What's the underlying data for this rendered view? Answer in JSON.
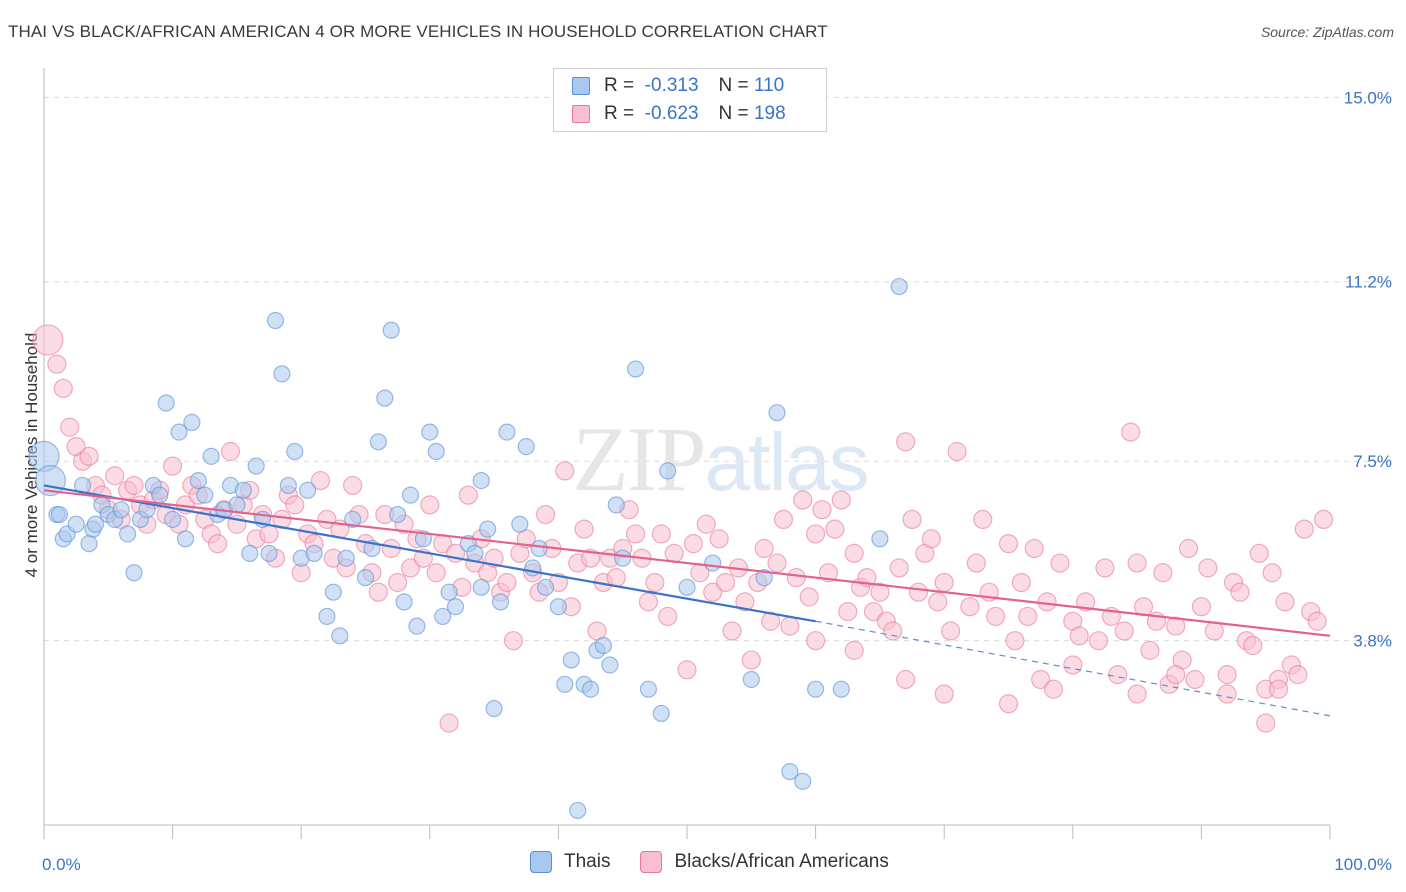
{
  "header": {
    "title": "THAI VS BLACK/AFRICAN AMERICAN 4 OR MORE VEHICLES IN HOUSEHOLD CORRELATION CHART",
    "source": "Source: ZipAtlas.com"
  },
  "watermark": "ZIPatlas",
  "legend": {
    "rows": [
      {
        "r_label": "R =",
        "r_value": "-0.313",
        "n_label": "N =",
        "n_value": "110",
        "color": "#a9c8ee",
        "stroke": "#5b8fd6"
      },
      {
        "r_label": "R =",
        "r_value": "-0.623",
        "n_label": "N =",
        "n_value": "198",
        "color": "#f7bfd0",
        "stroke": "#e8799b"
      }
    ]
  },
  "bottom_legend": [
    {
      "label": "Thais",
      "color": "#a9c8ee",
      "stroke": "#5b8fd6"
    },
    {
      "label": "Blacks/African Americans",
      "color": "#f7bfd0",
      "stroke": "#e8799b"
    }
  ],
  "chart_data": {
    "type": "scatter",
    "title": "THAI VS BLACK/AFRICAN AMERICAN 4 OR MORE VEHICLES IN HOUSEHOLD CORRELATION CHART",
    "xlabel": "",
    "ylabel": "4 or more Vehicles in Household",
    "xlim": [
      0,
      100
    ],
    "ylim": [
      0,
      15.4
    ],
    "x_tick_labels": [
      {
        "value": 0,
        "label": "0.0%"
      },
      {
        "value": 100,
        "label": "100.0%"
      }
    ],
    "y_ticks": [
      {
        "value": 3.8,
        "label": "3.8%"
      },
      {
        "value": 7.5,
        "label": "7.5%"
      },
      {
        "value": 11.2,
        "label": "11.2%"
      },
      {
        "value": 15.0,
        "label": "15.0%"
      }
    ],
    "grid": true,
    "legend_position": "top-center",
    "series": [
      {
        "name": "Thais",
        "color": "#5b8fd6",
        "fill": "#a9c8ee",
        "trend": {
          "x_start": 0,
          "y_start": 7.0,
          "x_end": 60,
          "y_end": 4.2,
          "dashed_to_x": 100,
          "dashed_to_y": 2.25
        },
        "points": [
          [
            0,
            7.6
          ],
          [
            0.5,
            7.1
          ],
          [
            1,
            6.4
          ],
          [
            1.2,
            6.4
          ],
          [
            1.5,
            5.9
          ],
          [
            1.8,
            6.0
          ],
          [
            2.5,
            6.2
          ],
          [
            3,
            7.0
          ],
          [
            3.5,
            5.8
          ],
          [
            3.8,
            6.1
          ],
          [
            4,
            6.2
          ],
          [
            4.5,
            6.6
          ],
          [
            5,
            6.4
          ],
          [
            5.5,
            6.3
          ],
          [
            6,
            6.5
          ],
          [
            6.5,
            6.0
          ],
          [
            7,
            5.2
          ],
          [
            7.5,
            6.3
          ],
          [
            8,
            6.5
          ],
          [
            8.5,
            7.0
          ],
          [
            9,
            6.8
          ],
          [
            9.5,
            8.7
          ],
          [
            10,
            6.3
          ],
          [
            10.5,
            8.1
          ],
          [
            11,
            5.9
          ],
          [
            11.5,
            8.3
          ],
          [
            12,
            7.1
          ],
          [
            12.5,
            6.8
          ],
          [
            13,
            7.6
          ],
          [
            13.5,
            6.4
          ],
          [
            14,
            6.5
          ],
          [
            14.5,
            7.0
          ],
          [
            15,
            6.6
          ],
          [
            15.5,
            6.9
          ],
          [
            16,
            5.6
          ],
          [
            16.5,
            7.4
          ],
          [
            17,
            6.3
          ],
          [
            17.5,
            5.6
          ],
          [
            18,
            10.4
          ],
          [
            18.5,
            9.3
          ],
          [
            19,
            7.0
          ],
          [
            19.5,
            7.7
          ],
          [
            20,
            5.5
          ],
          [
            20.5,
            6.9
          ],
          [
            21,
            5.6
          ],
          [
            22,
            4.3
          ],
          [
            22.5,
            4.8
          ],
          [
            23,
            3.9
          ],
          [
            23.5,
            5.5
          ],
          [
            24,
            6.3
          ],
          [
            25,
            5.1
          ],
          [
            25.5,
            5.7
          ],
          [
            26,
            7.9
          ],
          [
            26.5,
            8.8
          ],
          [
            27,
            10.2
          ],
          [
            27.5,
            6.4
          ],
          [
            28,
            4.6
          ],
          [
            28.5,
            6.8
          ],
          [
            29,
            4.1
          ],
          [
            29.5,
            5.9
          ],
          [
            30,
            8.1
          ],
          [
            30.5,
            7.7
          ],
          [
            31,
            4.3
          ],
          [
            31.5,
            4.8
          ],
          [
            32,
            4.5
          ],
          [
            33,
            5.8
          ],
          [
            33.5,
            5.6
          ],
          [
            34,
            7.1
          ],
          [
            34.5,
            6.1
          ],
          [
            35,
            2.4
          ],
          [
            35.5,
            4.6
          ],
          [
            36,
            8.1
          ],
          [
            37,
            6.2
          ],
          [
            37.5,
            7.8
          ],
          [
            38,
            5.3
          ],
          [
            38.5,
            5.7
          ],
          [
            39,
            4.9
          ],
          [
            40,
            4.5
          ],
          [
            40.5,
            2.9
          ],
          [
            41,
            3.4
          ],
          [
            41.5,
            0.3
          ],
          [
            42,
            2.9
          ],
          [
            42.5,
            2.8
          ],
          [
            43,
            3.6
          ],
          [
            43.5,
            3.7
          ],
          [
            44,
            3.3
          ],
          [
            44.5,
            6.6
          ],
          [
            45,
            5.5
          ],
          [
            46,
            9.4
          ],
          [
            47,
            2.8
          ],
          [
            48,
            2.3
          ],
          [
            48.5,
            7.3
          ],
          [
            50,
            4.9
          ],
          [
            52,
            5.4
          ],
          [
            55,
            3.0
          ],
          [
            56,
            5.1
          ],
          [
            57,
            8.5
          ],
          [
            58,
            1.1
          ],
          [
            59,
            0.9
          ],
          [
            60,
            2.8
          ],
          [
            62,
            2.8
          ],
          [
            65,
            5.9
          ],
          [
            66.5,
            11.1
          ],
          [
            34,
            4.9
          ]
        ]
      },
      {
        "name": "Blacks/African Americans",
        "color": "#e8799b",
        "fill": "#f7bfd0",
        "trend": {
          "x_start": 0,
          "y_start": 6.9,
          "x_end": 100,
          "y_end": 3.9
        },
        "points": [
          [
            0.3,
            10.0
          ],
          [
            1,
            9.5
          ],
          [
            1.5,
            9.0
          ],
          [
            2,
            8.2
          ],
          [
            2.5,
            7.8
          ],
          [
            3,
            7.5
          ],
          [
            3.5,
            7.6
          ],
          [
            4,
            7.0
          ],
          [
            4.5,
            6.8
          ],
          [
            5,
            6.5
          ],
          [
            5.5,
            7.2
          ],
          [
            6,
            6.3
          ],
          [
            6.5,
            6.9
          ],
          [
            7,
            7.0
          ],
          [
            7.5,
            6.6
          ],
          [
            8,
            6.2
          ],
          [
            8.5,
            6.7
          ],
          [
            9,
            6.9
          ],
          [
            9.5,
            6.4
          ],
          [
            10,
            7.4
          ],
          [
            10.5,
            6.2
          ],
          [
            11,
            6.6
          ],
          [
            11.5,
            7.0
          ],
          [
            12,
            6.8
          ],
          [
            12.5,
            6.3
          ],
          [
            13,
            6.0
          ],
          [
            13.5,
            5.8
          ],
          [
            14,
            6.5
          ],
          [
            14.5,
            7.7
          ],
          [
            15,
            6.2
          ],
          [
            15.5,
            6.6
          ],
          [
            16,
            6.9
          ],
          [
            16.5,
            5.9
          ],
          [
            17,
            6.4
          ],
          [
            17.5,
            6.0
          ],
          [
            18,
            5.5
          ],
          [
            18.5,
            6.3
          ],
          [
            19,
            6.8
          ],
          [
            19.5,
            6.6
          ],
          [
            20,
            5.2
          ],
          [
            20.5,
            6.0
          ],
          [
            21,
            5.8
          ],
          [
            21.5,
            7.1
          ],
          [
            22,
            6.3
          ],
          [
            22.5,
            5.5
          ],
          [
            23,
            6.1
          ],
          [
            23.5,
            5.3
          ],
          [
            24,
            7.0
          ],
          [
            24.5,
            6.4
          ],
          [
            25,
            5.8
          ],
          [
            25.5,
            5.2
          ],
          [
            26,
            4.8
          ],
          [
            26.5,
            6.4
          ],
          [
            27,
            5.7
          ],
          [
            27.5,
            5.0
          ],
          [
            28,
            6.2
          ],
          [
            28.5,
            5.3
          ],
          [
            29,
            5.9
          ],
          [
            29.5,
            5.5
          ],
          [
            30,
            6.6
          ],
          [
            30.5,
            5.2
          ],
          [
            31,
            5.8
          ],
          [
            31.5,
            2.1
          ],
          [
            32,
            5.6
          ],
          [
            32.5,
            4.9
          ],
          [
            33,
            6.8
          ],
          [
            33.5,
            5.4
          ],
          [
            34,
            5.9
          ],
          [
            34.5,
            5.2
          ],
          [
            35,
            5.5
          ],
          [
            35.5,
            4.8
          ],
          [
            36,
            5.0
          ],
          [
            36.5,
            3.8
          ],
          [
            37,
            5.6
          ],
          [
            37.5,
            5.9
          ],
          [
            38,
            5.2
          ],
          [
            38.5,
            4.8
          ],
          [
            39,
            6.4
          ],
          [
            39.5,
            5.7
          ],
          [
            40,
            5.0
          ],
          [
            40.5,
            7.3
          ],
          [
            41,
            4.5
          ],
          [
            41.5,
            5.4
          ],
          [
            42,
            6.1
          ],
          [
            42.5,
            5.5
          ],
          [
            43,
            4.0
          ],
          [
            43.5,
            5.0
          ],
          [
            44,
            5.5
          ],
          [
            44.5,
            5.1
          ],
          [
            45,
            5.7
          ],
          [
            45.5,
            6.5
          ],
          [
            46,
            6.0
          ],
          [
            46.5,
            5.5
          ],
          [
            47,
            4.6
          ],
          [
            47.5,
            5.0
          ],
          [
            48,
            6.0
          ],
          [
            48.5,
            4.3
          ],
          [
            49,
            5.6
          ],
          [
            50,
            3.2
          ],
          [
            50.5,
            5.8
          ],
          [
            51,
            5.2
          ],
          [
            51.5,
            6.2
          ],
          [
            52,
            4.8
          ],
          [
            52.5,
            5.9
          ],
          [
            53,
            5.0
          ],
          [
            53.5,
            4.0
          ],
          [
            54,
            5.3
          ],
          [
            54.5,
            4.6
          ],
          [
            55,
            3.4
          ],
          [
            55.5,
            5.0
          ],
          [
            56,
            5.7
          ],
          [
            56.5,
            4.2
          ],
          [
            57,
            5.4
          ],
          [
            57.5,
            6.3
          ],
          [
            58,
            4.1
          ],
          [
            58.5,
            5.1
          ],
          [
            59,
            6.7
          ],
          [
            59.5,
            4.7
          ],
          [
            60,
            6.0
          ],
          [
            60.5,
            6.5
          ],
          [
            61,
            5.2
          ],
          [
            61.5,
            6.1
          ],
          [
            62,
            6.7
          ],
          [
            62.5,
            4.4
          ],
          [
            63,
            5.6
          ],
          [
            63.5,
            4.9
          ],
          [
            64,
            5.1
          ],
          [
            64.5,
            4.4
          ],
          [
            65,
            4.8
          ],
          [
            65.5,
            4.2
          ],
          [
            66,
            4.0
          ],
          [
            66.5,
            5.3
          ],
          [
            67,
            7.9
          ],
          [
            67.5,
            6.3
          ],
          [
            68,
            4.8
          ],
          [
            68.5,
            5.6
          ],
          [
            69,
            5.9
          ],
          [
            69.5,
            4.6
          ],
          [
            70,
            5.0
          ],
          [
            70.5,
            4.0
          ],
          [
            71,
            7.7
          ],
          [
            72,
            4.5
          ],
          [
            72.5,
            5.4
          ],
          [
            73,
            6.3
          ],
          [
            73.5,
            4.8
          ],
          [
            74,
            4.3
          ],
          [
            75,
            5.8
          ],
          [
            75.5,
            3.8
          ],
          [
            76,
            5.0
          ],
          [
            76.5,
            4.3
          ],
          [
            77,
            5.7
          ],
          [
            77.5,
            3.0
          ],
          [
            78,
            4.6
          ],
          [
            78.5,
            2.8
          ],
          [
            79,
            5.4
          ],
          [
            80,
            4.2
          ],
          [
            80.5,
            3.9
          ],
          [
            81,
            4.6
          ],
          [
            82,
            3.8
          ],
          [
            82.5,
            5.3
          ],
          [
            83,
            4.3
          ],
          [
            83.5,
            3.1
          ],
          [
            84,
            4.0
          ],
          [
            84.5,
            8.1
          ],
          [
            85,
            5.4
          ],
          [
            85.5,
            4.5
          ],
          [
            86,
            3.6
          ],
          [
            86.5,
            4.2
          ],
          [
            87,
            5.2
          ],
          [
            87.5,
            2.9
          ],
          [
            88,
            4.1
          ],
          [
            88.5,
            3.4
          ],
          [
            89,
            5.7
          ],
          [
            89.5,
            3.0
          ],
          [
            90,
            4.5
          ],
          [
            90.5,
            5.3
          ],
          [
            91,
            4.0
          ],
          [
            92,
            3.1
          ],
          [
            92.5,
            5.0
          ],
          [
            93,
            4.8
          ],
          [
            93.5,
            3.8
          ],
          [
            94,
            3.7
          ],
          [
            94.5,
            5.6
          ],
          [
            95,
            2.8
          ],
          [
            95.5,
            5.2
          ],
          [
            96,
            3.0
          ],
          [
            96.5,
            4.6
          ],
          [
            97,
            3.3
          ],
          [
            97.5,
            3.1
          ],
          [
            98,
            6.1
          ],
          [
            98.5,
            4.4
          ],
          [
            99,
            4.2
          ],
          [
            99.5,
            6.3
          ],
          [
            95,
            2.1
          ],
          [
            96,
            2.8
          ],
          [
            92,
            2.7
          ],
          [
            88,
            3.1
          ],
          [
            85,
            2.7
          ],
          [
            80,
            3.3
          ],
          [
            75,
            2.5
          ],
          [
            70,
            2.7
          ],
          [
            67,
            3.0
          ],
          [
            63,
            3.6
          ],
          [
            60,
            3.8
          ]
        ]
      }
    ]
  }
}
